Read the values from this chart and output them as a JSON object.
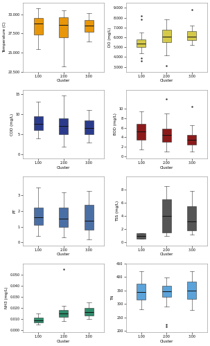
{
  "panels": [
    {
      "ylabel": "Temperature (C)",
      "color": "#E8960A",
      "clusters": [
        "1.00",
        "2.00",
        "3.00"
      ],
      "boxes": [
        {
          "whislo": 25.5,
          "q1": 27.4,
          "med": 28.8,
          "q3": 29.5,
          "whishi": 30.8,
          "fliers": []
        },
        {
          "whislo": 23.2,
          "q1": 27.0,
          "med": 28.6,
          "q3": 29.6,
          "whishi": 30.5,
          "fliers": []
        },
        {
          "whislo": 26.5,
          "q1": 27.7,
          "med": 28.5,
          "q3": 29.3,
          "whishi": 30.2,
          "fliers": []
        }
      ],
      "ylim": [
        22.5,
        31.5
      ],
      "yticks": [
        22.5,
        25.0,
        27.5,
        30.0
      ]
    },
    {
      "ylabel": "DO (mg/L)",
      "color": "#D4C94A",
      "clusters": [
        "1.00",
        "2.00",
        "3.00"
      ],
      "boxes": [
        {
          "whislo": 4.4,
          "q1": 5.0,
          "med": 5.35,
          "q3": 5.8,
          "whishi": 6.5,
          "fliers": [
            3.9,
            3.6,
            7.8,
            8.2
          ]
        },
        {
          "whislo": 4.2,
          "q1": 5.5,
          "med": 6.1,
          "q3": 6.8,
          "whishi": 7.8,
          "fliers": [
            3.1
          ]
        },
        {
          "whislo": 5.2,
          "q1": 5.7,
          "med": 6.1,
          "q3": 6.6,
          "whishi": 7.2,
          "fliers": [
            8.8
          ]
        }
      ],
      "ylim": [
        2.5,
        9.5
      ],
      "yticks": [
        3.0,
        4.0,
        5.0,
        6.0,
        7.0,
        8.0,
        9.0
      ]
    },
    {
      "ylabel": "COD (mg/L)",
      "color": "#2B3B8C",
      "clusters": [
        "1.00",
        "2.00",
        "3.00"
      ],
      "boxes": [
        {
          "whislo": 4.0,
          "q1": 6.0,
          "med": 7.5,
          "q3": 9.5,
          "whishi": 13.0,
          "fliers": []
        },
        {
          "whislo": 2.0,
          "q1": 5.0,
          "med": 7.0,
          "q3": 9.0,
          "whishi": 14.5,
          "fliers": []
        },
        {
          "whislo": 3.0,
          "q1": 5.0,
          "med": 6.5,
          "q3": 8.5,
          "whishi": 11.0,
          "fliers": []
        }
      ],
      "ylim": [
        -1,
        16
      ],
      "yticks": [
        0.0,
        5.0,
        10.0,
        15.0
      ]
    },
    {
      "ylabel": "BOD (mg/L)",
      "color": "#8B1A1A",
      "clusters": [
        "1.00",
        "2.00",
        "3.00"
      ],
      "boxes": [
        {
          "whislo": 1.5,
          "q1": 3.5,
          "med": 5.2,
          "q3": 6.8,
          "whishi": 9.5,
          "fliers": []
        },
        {
          "whislo": 1.0,
          "q1": 3.0,
          "med": 4.5,
          "q3": 5.8,
          "whishi": 9.0,
          "fliers": [
            12.0
          ]
        },
        {
          "whislo": 1.0,
          "q1": 2.5,
          "med": 3.5,
          "q3": 4.5,
          "whishi": 6.5,
          "fliers": [
            10.5
          ]
        }
      ],
      "ylim": [
        -0.5,
        14
      ],
      "yticks": [
        0.0,
        2.0,
        4.0,
        6.0,
        8.0,
        10.0
      ]
    },
    {
      "ylabel": "PT",
      "color": "#4A6FA5",
      "clusters": [
        "1.00",
        "2.00",
        "3.00"
      ],
      "boxes": [
        {
          "whislo": 0.4,
          "q1": 1.1,
          "med": 1.6,
          "q3": 2.2,
          "whishi": 3.5,
          "fliers": []
        },
        {
          "whislo": 0.3,
          "q1": 1.0,
          "med": 1.5,
          "q3": 2.2,
          "whishi": 3.2,
          "fliers": []
        },
        {
          "whislo": 0.2,
          "q1": 0.8,
          "med": 1.4,
          "q3": 2.4,
          "whishi": 3.3,
          "fliers": []
        }
      ],
      "ylim": [
        -0.2,
        4.2
      ],
      "yticks": [
        0.0,
        1.0,
        2.0,
        3.0
      ]
    },
    {
      "ylabel": "TSS (mg/L)",
      "color": "#555555",
      "clusters": [
        "1.00",
        "2.00",
        "3.00"
      ],
      "boxes": [
        {
          "whislo": 0.5,
          "q1": 0.5,
          "med": 0.9,
          "q3": 1.4,
          "whishi": 1.4,
          "fliers": []
        },
        {
          "whislo": 1.0,
          "q1": 1.5,
          "med": 4.0,
          "q3": 6.5,
          "whishi": 8.5,
          "fliers": []
        },
        {
          "whislo": 1.2,
          "q1": 1.8,
          "med": 3.2,
          "q3": 5.5,
          "whishi": 7.8,
          "fliers": []
        }
      ],
      "ylim": [
        -0.5,
        10
      ],
      "yticks": [
        0.0,
        2.0,
        4.0,
        6.0,
        8.0
      ]
    },
    {
      "ylabel": "NH3 (mg/L)",
      "color": "#2E8B6A",
      "clusters": [
        "1.00",
        "2.00",
        "3.00"
      ],
      "boxes": [
        {
          "whislo": 0.005,
          "q1": 0.007,
          "med": 0.009,
          "q3": 0.011,
          "whishi": 0.015,
          "fliers": []
        },
        {
          "whislo": 0.008,
          "q1": 0.012,
          "med": 0.015,
          "q3": 0.018,
          "whishi": 0.022,
          "fliers": [
            0.055
          ]
        },
        {
          "whislo": 0.01,
          "q1": 0.013,
          "med": 0.016,
          "q3": 0.02,
          "whishi": 0.025,
          "fliers": []
        }
      ],
      "ylim": [
        -0.002,
        0.06
      ],
      "yticks": [
        0.0,
        0.01,
        0.02,
        0.03,
        0.04,
        0.05
      ]
    },
    {
      "ylabel": "TN",
      "color": "#5BA3D9",
      "clusters": [
        "1.00",
        "2.00",
        "3.00"
      ],
      "boxes": [
        {
          "whislo": 280,
          "q1": 315,
          "med": 345,
          "q3": 375,
          "whishi": 420,
          "fliers": []
        },
        {
          "whislo": 290,
          "q1": 325,
          "med": 348,
          "q3": 368,
          "whishi": 398,
          "fliers": [
            225,
            215
          ]
        },
        {
          "whislo": 278,
          "q1": 318,
          "med": 350,
          "q3": 382,
          "whishi": 420,
          "fliers": []
        }
      ],
      "ylim": [
        195,
        450
      ],
      "yticks": [
        200,
        250,
        300,
        350,
        400,
        450
      ]
    }
  ],
  "xlabel": "Cluster",
  "label_fontsize": 4.0,
  "tick_fontsize": 3.5
}
